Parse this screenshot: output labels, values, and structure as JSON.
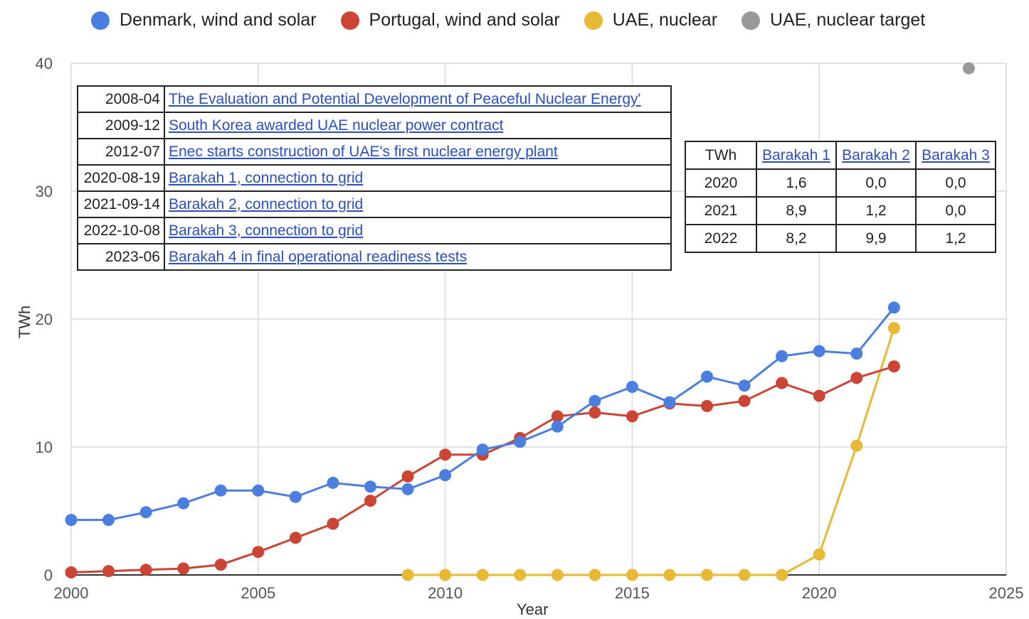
{
  "chart_data": {
    "type": "line",
    "xlabel": "Year",
    "ylabel": "TWh",
    "xlim": [
      2000,
      2025
    ],
    "ylim": [
      0,
      40
    ],
    "x_ticks": [
      "2000",
      "2005",
      "2010",
      "2015",
      "2020",
      "2025"
    ],
    "y_ticks": [
      "0",
      "10",
      "20",
      "30",
      "40"
    ],
    "grid": true,
    "legend_position": "top",
    "series": [
      {
        "name": "Denmark, wind and solar",
        "color": "#4a7fe0",
        "x": [
          2000,
          2001,
          2002,
          2003,
          2004,
          2005,
          2006,
          2007,
          2008,
          2009,
          2010,
          2011,
          2012,
          2013,
          2014,
          2015,
          2016,
          2017,
          2018,
          2019,
          2020,
          2021,
          2022
        ],
        "y": [
          4.3,
          4.3,
          4.9,
          5.6,
          6.6,
          6.6,
          6.1,
          7.2,
          6.9,
          6.7,
          7.8,
          9.8,
          10.4,
          11.6,
          13.6,
          14.7,
          13.5,
          15.5,
          14.8,
          17.1,
          17.5,
          17.3,
          20.9
        ]
      },
      {
        "name": "Portugal, wind and solar",
        "color": "#cc4433",
        "x": [
          2000,
          2001,
          2002,
          2003,
          2004,
          2005,
          2006,
          2007,
          2008,
          2009,
          2010,
          2011,
          2012,
          2013,
          2014,
          2015,
          2016,
          2017,
          2018,
          2019,
          2020,
          2021,
          2022
        ],
        "y": [
          0.2,
          0.3,
          0.4,
          0.5,
          0.8,
          1.8,
          2.9,
          4.0,
          5.8,
          7.7,
          9.4,
          9.4,
          10.7,
          12.4,
          12.7,
          12.4,
          13.4,
          13.2,
          13.6,
          15.0,
          14.0,
          15.4,
          16.3
        ]
      },
      {
        "name": "UAE, nuclear",
        "color": "#e8b935",
        "x": [
          2009,
          2010,
          2011,
          2012,
          2013,
          2014,
          2015,
          2016,
          2017,
          2018,
          2019,
          2020,
          2021,
          2022
        ],
        "y": [
          0,
          0,
          0,
          0,
          0,
          0,
          0,
          0,
          0,
          0,
          0,
          1.6,
          10.1,
          19.3
        ]
      },
      {
        "name": "UAE, nuclear target",
        "color": "#999999",
        "x": [
          2024
        ],
        "y": [
          39.6
        ]
      }
    ]
  },
  "events_table": [
    {
      "date": "2008-04",
      "text": "The Evaluation and Potential Development of Peaceful Nuclear Energy'"
    },
    {
      "date": "2009-12",
      "text": "South Korea awarded UAE nuclear power contract"
    },
    {
      "date": "2012-07",
      "text": "Enec starts construction of UAE's first nuclear energy plant"
    },
    {
      "date": "2020-08-19",
      "text": "Barakah 1, connection to grid"
    },
    {
      "date": "2021-09-14",
      "text": "Barakah 2, connection to grid"
    },
    {
      "date": "2022-10-08",
      "text": "Barakah 3, connection to grid"
    },
    {
      "date": "2023-06",
      "text": "Barakah 4 in final operational readiness tests"
    }
  ],
  "production_table": {
    "header": [
      "TWh",
      "Barakah 1",
      "Barakah 2",
      "Barakah 3"
    ],
    "rows": [
      [
        "2020",
        "1,6",
        "0,0",
        "0,0"
      ],
      [
        "2021",
        "8,9",
        "1,2",
        "0,0"
      ],
      [
        "2022",
        "8,2",
        "9,9",
        "1,2"
      ]
    ]
  }
}
